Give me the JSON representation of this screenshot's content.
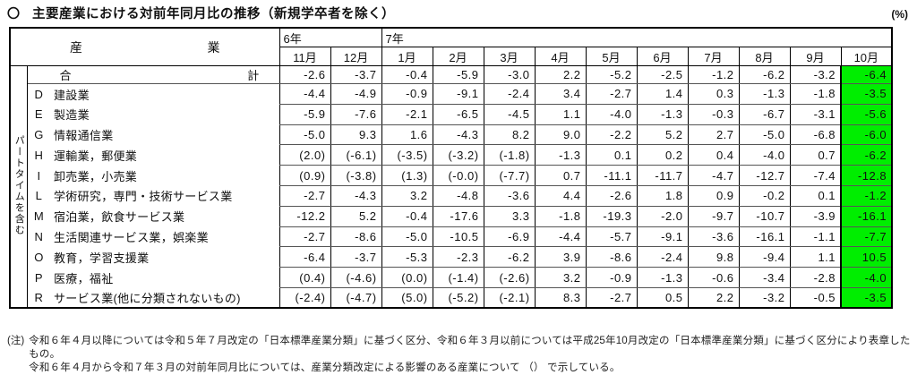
{
  "page": {
    "title_marker": "〇",
    "title": "主要産業における対前年同月比の推移（新規学卒者を除く）",
    "unit_label": "(%)"
  },
  "table": {
    "industry_header": "産業",
    "year_groups": [
      {
        "label": "6年",
        "span": 2
      },
      {
        "label": "7年",
        "span": 10
      }
    ],
    "months": [
      "11月",
      "12月",
      "1月",
      "2月",
      "3月",
      "4月",
      "5月",
      "6月",
      "7月",
      "8月",
      "9月",
      "10月"
    ],
    "side_label": "パートタイムを含む",
    "highlight_color": "#00ee00",
    "rows": [
      {
        "code": "",
        "name": "合計",
        "total": true,
        "values": [
          "-2.6",
          "-3.7",
          "-0.4",
          "-5.9",
          "-3.0",
          "2.2",
          "-5.2",
          "-2.5",
          "-1.2",
          "-6.2",
          "-3.2",
          "-6.4"
        ]
      },
      {
        "code": "D",
        "name": "建設業",
        "total": false,
        "values": [
          "-4.4",
          "-4.9",
          "-0.9",
          "-9.1",
          "-2.4",
          "3.4",
          "-2.7",
          "1.4",
          "0.3",
          "-1.3",
          "-1.8",
          "-3.5"
        ]
      },
      {
        "code": "E",
        "name": "製造業",
        "total": false,
        "values": [
          "-5.9",
          "-7.6",
          "-2.1",
          "-6.5",
          "-4.5",
          "1.1",
          "-4.0",
          "-1.3",
          "-0.3",
          "-6.7",
          "-3.1",
          "-5.6"
        ]
      },
      {
        "code": "G",
        "name": "情報通信業",
        "total": false,
        "values": [
          "-5.0",
          "9.3",
          "1.6",
          "-4.3",
          "8.2",
          "9.0",
          "-2.2",
          "5.2",
          "2.7",
          "-5.0",
          "-6.8",
          "-6.0"
        ]
      },
      {
        "code": "H",
        "name": "運輸業，郵便業",
        "total": false,
        "values": [
          "(2.0)",
          "(-6.1)",
          "(-3.5)",
          "(-3.2)",
          "(-1.8)",
          "-1.3",
          "0.1",
          "0.2",
          "0.4",
          "-4.0",
          "0.7",
          "-6.2"
        ]
      },
      {
        "code": "I",
        "name": "卸売業，小売業",
        "total": false,
        "values": [
          "(0.9)",
          "(-3.8)",
          "(1.3)",
          "(-0.0)",
          "(-7.7)",
          "0.7",
          "-11.1",
          "-11.7",
          "-4.7",
          "-12.7",
          "-7.4",
          "-12.8"
        ]
      },
      {
        "code": "L",
        "name": "学術研究，専門・技術サービス業",
        "total": false,
        "values": [
          "-2.7",
          "-4.3",
          "3.2",
          "-4.8",
          "-3.6",
          "4.4",
          "-2.6",
          "1.8",
          "0.9",
          "-0.2",
          "0.1",
          "-1.2"
        ]
      },
      {
        "code": "M",
        "name": "宿泊業，飲食サービス業",
        "total": false,
        "values": [
          "-12.2",
          "5.2",
          "-0.4",
          "-17.6",
          "3.3",
          "-1.8",
          "-19.3",
          "-2.0",
          "-9.7",
          "-10.7",
          "-3.9",
          "-16.1"
        ]
      },
      {
        "code": "N",
        "name": "生活関連サービス業，娯楽業",
        "total": false,
        "values": [
          "-2.7",
          "-8.6",
          "-5.0",
          "-10.5",
          "-6.9",
          "-4.4",
          "-5.7",
          "-9.1",
          "-3.6",
          "-16.1",
          "-1.1",
          "-7.7"
        ]
      },
      {
        "code": "O",
        "name": "教育，学習支援業",
        "total": false,
        "values": [
          "-6.4",
          "-3.7",
          "-5.3",
          "-2.3",
          "-6.2",
          "3.9",
          "-8.6",
          "-2.4",
          "9.8",
          "-9.4",
          "1.1",
          "10.5"
        ]
      },
      {
        "code": "P",
        "name": "医療，福祉",
        "total": false,
        "values": [
          "(0.4)",
          "(-4.6)",
          "(0.0)",
          "(-1.4)",
          "(-2.6)",
          "3.2",
          "-0.9",
          "-1.3",
          "-0.6",
          "-3.4",
          "-2.8",
          "-4.0"
        ]
      },
      {
        "code": "R",
        "name": "サービス業(他に分類されないもの)",
        "total": false,
        "values": [
          "(-2.4)",
          "(-4.7)",
          "(5.0)",
          "(-5.2)",
          "(-2.1)",
          "8.3",
          "-2.7",
          "0.5",
          "2.2",
          "-3.2",
          "-0.5",
          "-3.5"
        ]
      }
    ]
  },
  "notes": {
    "prefix": "(注)",
    "line1": "令和６年４月以降については令和５年７月改定の「日本標準産業分類」に基づく区分、令和６年３月以前については平成25年10月改定の「日本標準産業分類」に基づく区分により表章したもの。",
    "line2": "令和６年４月から令和７年３月の対前年同月比については、産業分類改定による影響のある産業について （） で示している。"
  }
}
